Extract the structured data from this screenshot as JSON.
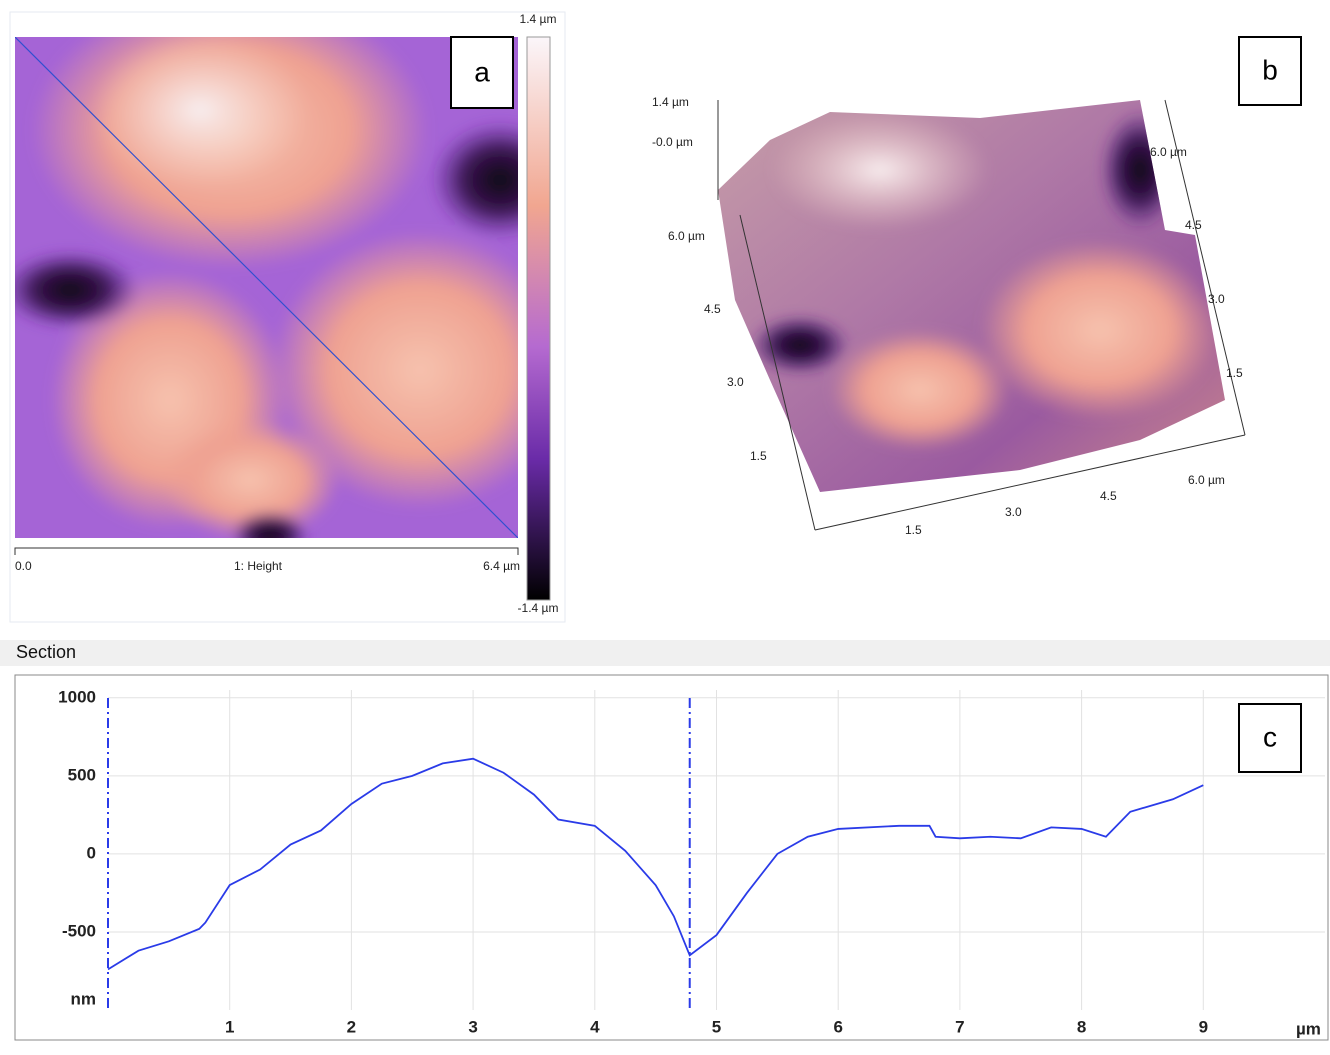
{
  "panel_a": {
    "label": "a",
    "colorbar_top": "1.4 µm",
    "colorbar_bottom": "-1.4 µm",
    "x_start": "0.0",
    "x_title": "1: Height",
    "x_end": "6.4 µm"
  },
  "panel_b": {
    "label": "b",
    "z_top": "1.4 µm",
    "z_bottom": "-0.0 µm",
    "left_axis": [
      "6.0 µm",
      "4.5",
      "3.0",
      "1.5"
    ],
    "right_axis": [
      "6.0 µm",
      "4.5",
      "3.0",
      "1.5"
    ],
    "bottom_axis": [
      "1.5",
      "3.0",
      "4.5",
      "6.0 µm"
    ]
  },
  "section_header": "Section",
  "chart_data": {
    "type": "line",
    "panel_label": "c",
    "y_label": "nm",
    "x_label": "µm",
    "x": [
      0,
      0.25,
      0.5,
      0.75,
      0.8,
      1.0,
      1.25,
      1.5,
      1.75,
      2.0,
      2.25,
      2.5,
      2.75,
      3.0,
      3.25,
      3.5,
      3.7,
      4.0,
      4.25,
      4.5,
      4.65,
      4.78,
      5.0,
      5.25,
      5.5,
      5.75,
      6.0,
      6.5,
      6.75,
      6.8,
      7.0,
      7.25,
      7.5,
      7.75,
      8.0,
      8.2,
      8.4,
      8.75,
      9.0
    ],
    "series": [
      {
        "color": "#2a3be8",
        "values": [
          -740,
          -620,
          -560,
          -480,
          -440,
          -200,
          -100,
          60,
          150,
          320,
          450,
          500,
          580,
          610,
          520,
          380,
          220,
          180,
          20,
          -200,
          -400,
          -650,
          -520,
          -250,
          0,
          110,
          160,
          180,
          180,
          110,
          100,
          110,
          100,
          170,
          160,
          110,
          270,
          350,
          440
        ]
      }
    ],
    "cursors": [
      0,
      4.78
    ],
    "cursor_color": "#2a3be8",
    "xlim": [
      0,
      10
    ],
    "ylim": [
      -1000,
      1050
    ],
    "xticks": [
      1,
      2,
      3,
      4,
      5,
      6,
      7,
      8,
      9
    ],
    "yticks": [
      1000,
      500,
      0,
      -500
    ],
    "grid": true
  }
}
